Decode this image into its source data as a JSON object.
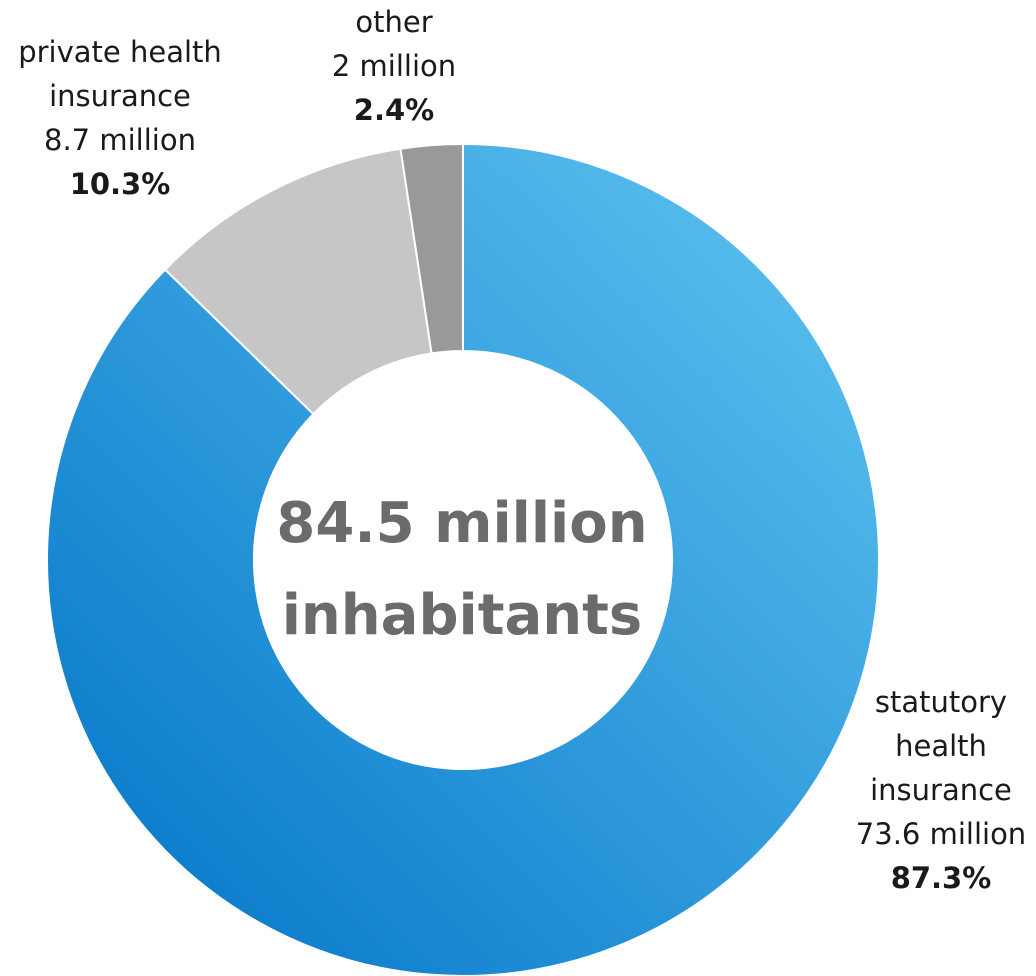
{
  "chart_data": {
    "type": "pie",
    "style": "donut",
    "center_text": [
      "84.5 million",
      "inhabitants"
    ],
    "slices": [
      {
        "label": [
          "statutory",
          "health",
          "insurance"
        ],
        "value_text": "73.6 million",
        "value": 73.6,
        "percent": 87.3,
        "percent_text": "87.3%",
        "color_start": "#0072c6",
        "color_end": "#62c6f2"
      },
      {
        "label": [
          "private health",
          "insurance"
        ],
        "value_text": "8.7 million",
        "value": 8.7,
        "percent": 10.3,
        "percent_text": "10.3%",
        "color": "#c6c6c6"
      },
      {
        "label": [
          "other"
        ],
        "value_text": "2 million",
        "value": 2,
        "percent": 2.4,
        "percent_text": "2.4%",
        "color": "#999999"
      }
    ]
  }
}
